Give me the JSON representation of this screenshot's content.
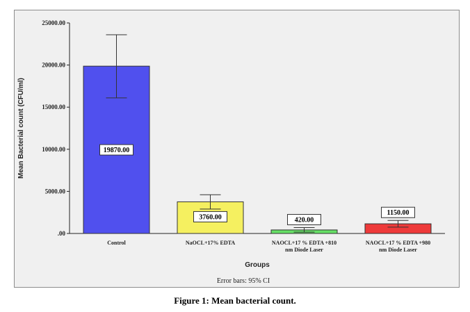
{
  "chart_data": {
    "type": "bar",
    "categories": [
      "Control",
      "NaOCL+17% EDTA",
      "NAOCL+17 % EDTA +810 nm Diode Laser",
      "NAOCL+17 % EDTA +980 nm Diode Laser"
    ],
    "category_lines": [
      [
        "Control"
      ],
      [
        "NaOCL+17% EDTA"
      ],
      [
        "NAOCL+17 % EDTA +810",
        "nm Diode Laser"
      ],
      [
        "NAOCL+17 % EDTA +980",
        "nm Diode Laser"
      ]
    ],
    "values": [
      19870,
      3760,
      420,
      1150
    ],
    "value_labels": [
      "19870.00",
      "3760.00",
      "420.00",
      "1150.00"
    ],
    "error_bars": [
      {
        "low": 16100,
        "high": 23600
      },
      {
        "low": 2900,
        "high": 4600
      },
      {
        "low": 150,
        "high": 700
      },
      {
        "low": 750,
        "high": 1550
      }
    ],
    "bar_colors": [
      "#5050ee",
      "#f5f060",
      "#66e066",
      "#ee3a3a"
    ],
    "ylim": [
      0,
      25000
    ],
    "yticks": [
      0,
      5000,
      10000,
      15000,
      20000,
      25000
    ],
    "ytick_labels": [
      ".00",
      "5000.00",
      "10000.00",
      "15000.00",
      "20000.00",
      "25000.00"
    ],
    "xlabel": "Groups",
    "ylabel": "Mean Bacterial count (CFU/ml)",
    "footnote": "Error bars: 95% CI",
    "grid": false
  },
  "caption": "Figure 1: Mean bacterial count."
}
